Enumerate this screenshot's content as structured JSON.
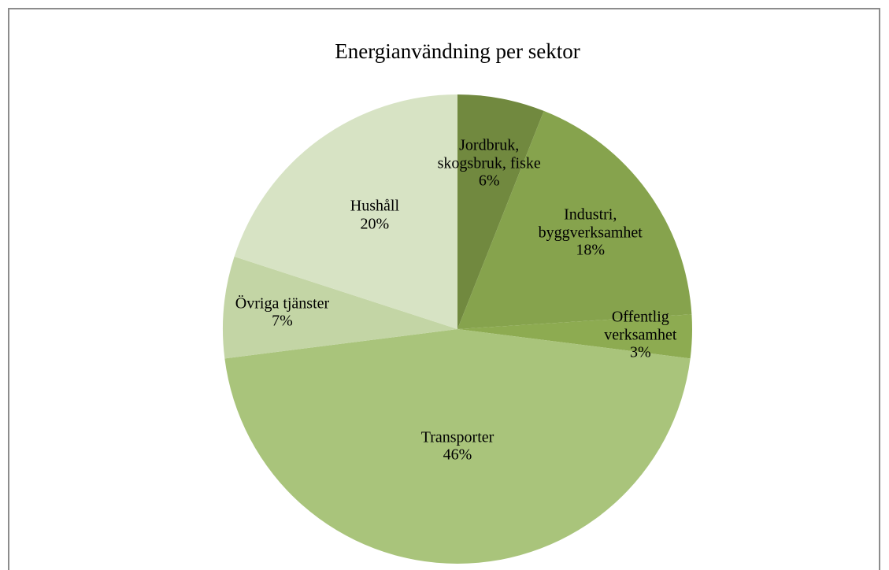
{
  "chart_data": {
    "type": "pie",
    "title": "Energianvändning per sektor",
    "categories": [
      "Jordbruk, skogsbruk, fiske",
      "Industri, byggverksamhet",
      "Offentlig verksamhet",
      "Transporter",
      "Övriga tjänster",
      "Hushåll"
    ],
    "values": [
      6,
      18,
      3,
      46,
      7,
      20
    ],
    "value_labels": [
      "6%",
      "18%",
      "3%",
      "46%",
      "7%",
      "20%"
    ],
    "colors": [
      "#71893f",
      "#86a34d",
      "#8dab51",
      "#a9c47b",
      "#c3d5a5",
      "#d7e3c4"
    ]
  }
}
